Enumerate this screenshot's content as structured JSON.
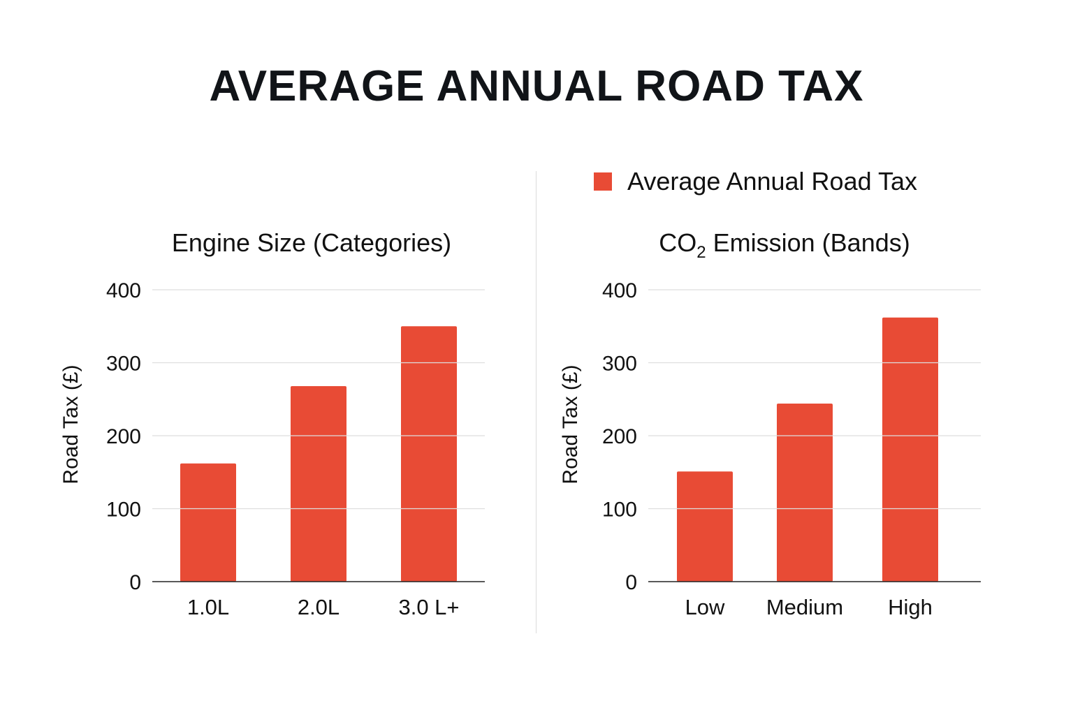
{
  "title": "AVERAGE ANNUAL ROAD TAX",
  "legend": {
    "label": "Average Annual Road Tax",
    "color": "#e84b35"
  },
  "chart_data": [
    {
      "type": "bar",
      "title": "Engine Size (Categories)",
      "categories": [
        "1.0L",
        "2.0L",
        "3.0 L+"
      ],
      "series": [
        {
          "name": "Average Annual Road Tax",
          "values": [
            162,
            268,
            350
          ]
        }
      ],
      "ylabel": "Road Tax (£)",
      "xlabel": "",
      "ylim": [
        0,
        400
      ],
      "yticks": [
        "0",
        "100",
        "200",
        "300",
        "400"
      ],
      "grid": true
    },
    {
      "type": "bar",
      "title_main": "CO",
      "title_sub": "2",
      "title_rest": " Emission (Bands)",
      "categories": [
        "Low",
        "Medium",
        "High"
      ],
      "series": [
        {
          "name": "Average Annual Road Tax",
          "values": [
            151,
            244,
            362
          ]
        }
      ],
      "ylabel": "Road Tax (£)",
      "xlabel": "",
      "ylim": [
        0,
        400
      ],
      "yticks": [
        "0",
        "100",
        "200",
        "300",
        "400"
      ],
      "grid": true
    }
  ]
}
